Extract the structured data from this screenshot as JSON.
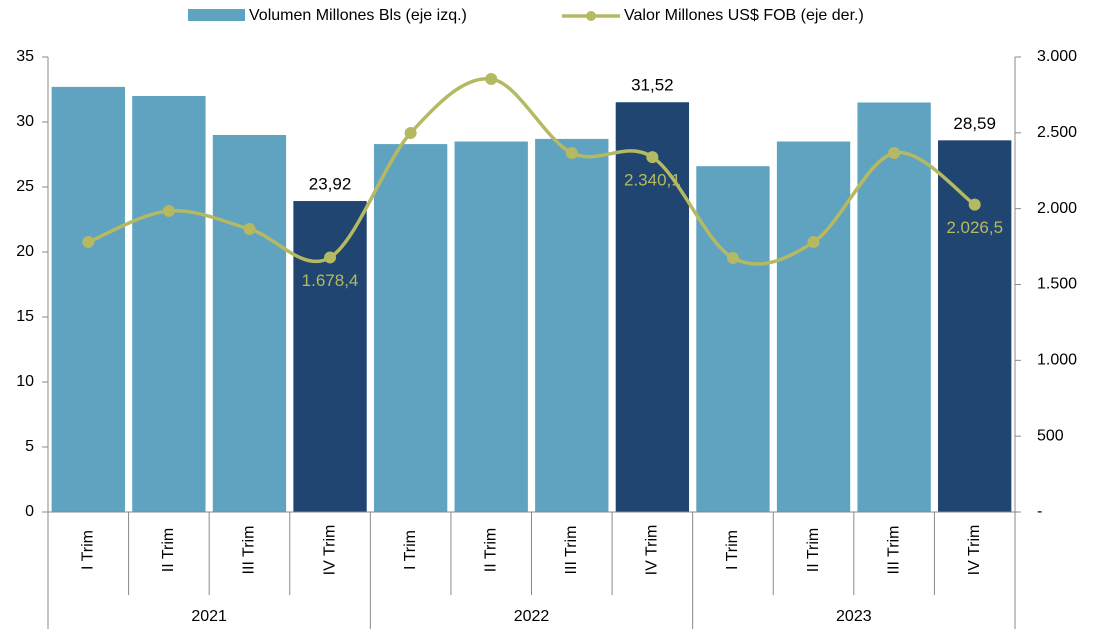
{
  "chart_data": {
    "type": "bar-line",
    "categories": [
      "I Trim",
      "II Trim",
      "III Trim",
      "IV Trim",
      "I Trim",
      "II Trim",
      "III Trim",
      "IV Trim",
      "I Trim",
      "II Trim",
      "III Trim",
      "IV Trim"
    ],
    "x_groups": [
      "2021",
      "2022",
      "2023"
    ],
    "series": [
      {
        "name": "Volumen Millones Bls (eje izq.)",
        "type": "bar",
        "color": "#5fa3c0",
        "colors": [
          "#5fa3c0",
          "#5fa3c0",
          "#5fa3c0",
          "#1f4570",
          "#5fa3c0",
          "#5fa3c0",
          "#5fa3c0",
          "#1f4570",
          "#5fa3c0",
          "#5fa3c0",
          "#5fa3c0",
          "#1f4570"
        ],
        "values": [
          32.7,
          32.0,
          29.0,
          23.92,
          28.3,
          28.5,
          28.7,
          31.52,
          26.6,
          28.5,
          31.5,
          28.59
        ],
        "value_labels": [
          null,
          null,
          null,
          "23,92",
          null,
          null,
          null,
          "31,52",
          null,
          null,
          null,
          "28,59"
        ]
      },
      {
        "name": "Valor Millones US$ FOB (eje der.)",
        "type": "line",
        "axis": "y2",
        "color": "#b5b962",
        "values": [
          1780,
          1985,
          1866,
          1678.4,
          2499,
          2855,
          2367,
          2340.1,
          1675,
          1780,
          2367,
          2026.5
        ],
        "value_labels": [
          null,
          null,
          null,
          "1.678,4",
          null,
          null,
          null,
          "2.340,1",
          null,
          null,
          null,
          "2.026,5"
        ]
      }
    ],
    "ylim": [
      0,
      35
    ],
    "yticks": [
      0,
      5,
      10,
      15,
      20,
      25,
      30,
      35
    ],
    "y2lim": [
      0,
      3000
    ],
    "y2ticks": [
      {
        "value": 0,
        "label": "-"
      },
      500,
      {
        "value": 1000,
        "label": "1.000"
      },
      {
        "value": 1500,
        "label": "1.500"
      },
      {
        "value": 2000,
        "label": "2.000"
      },
      {
        "value": 2500,
        "label": "2.500"
      },
      {
        "value": 3000,
        "label": "3.000"
      }
    ]
  }
}
